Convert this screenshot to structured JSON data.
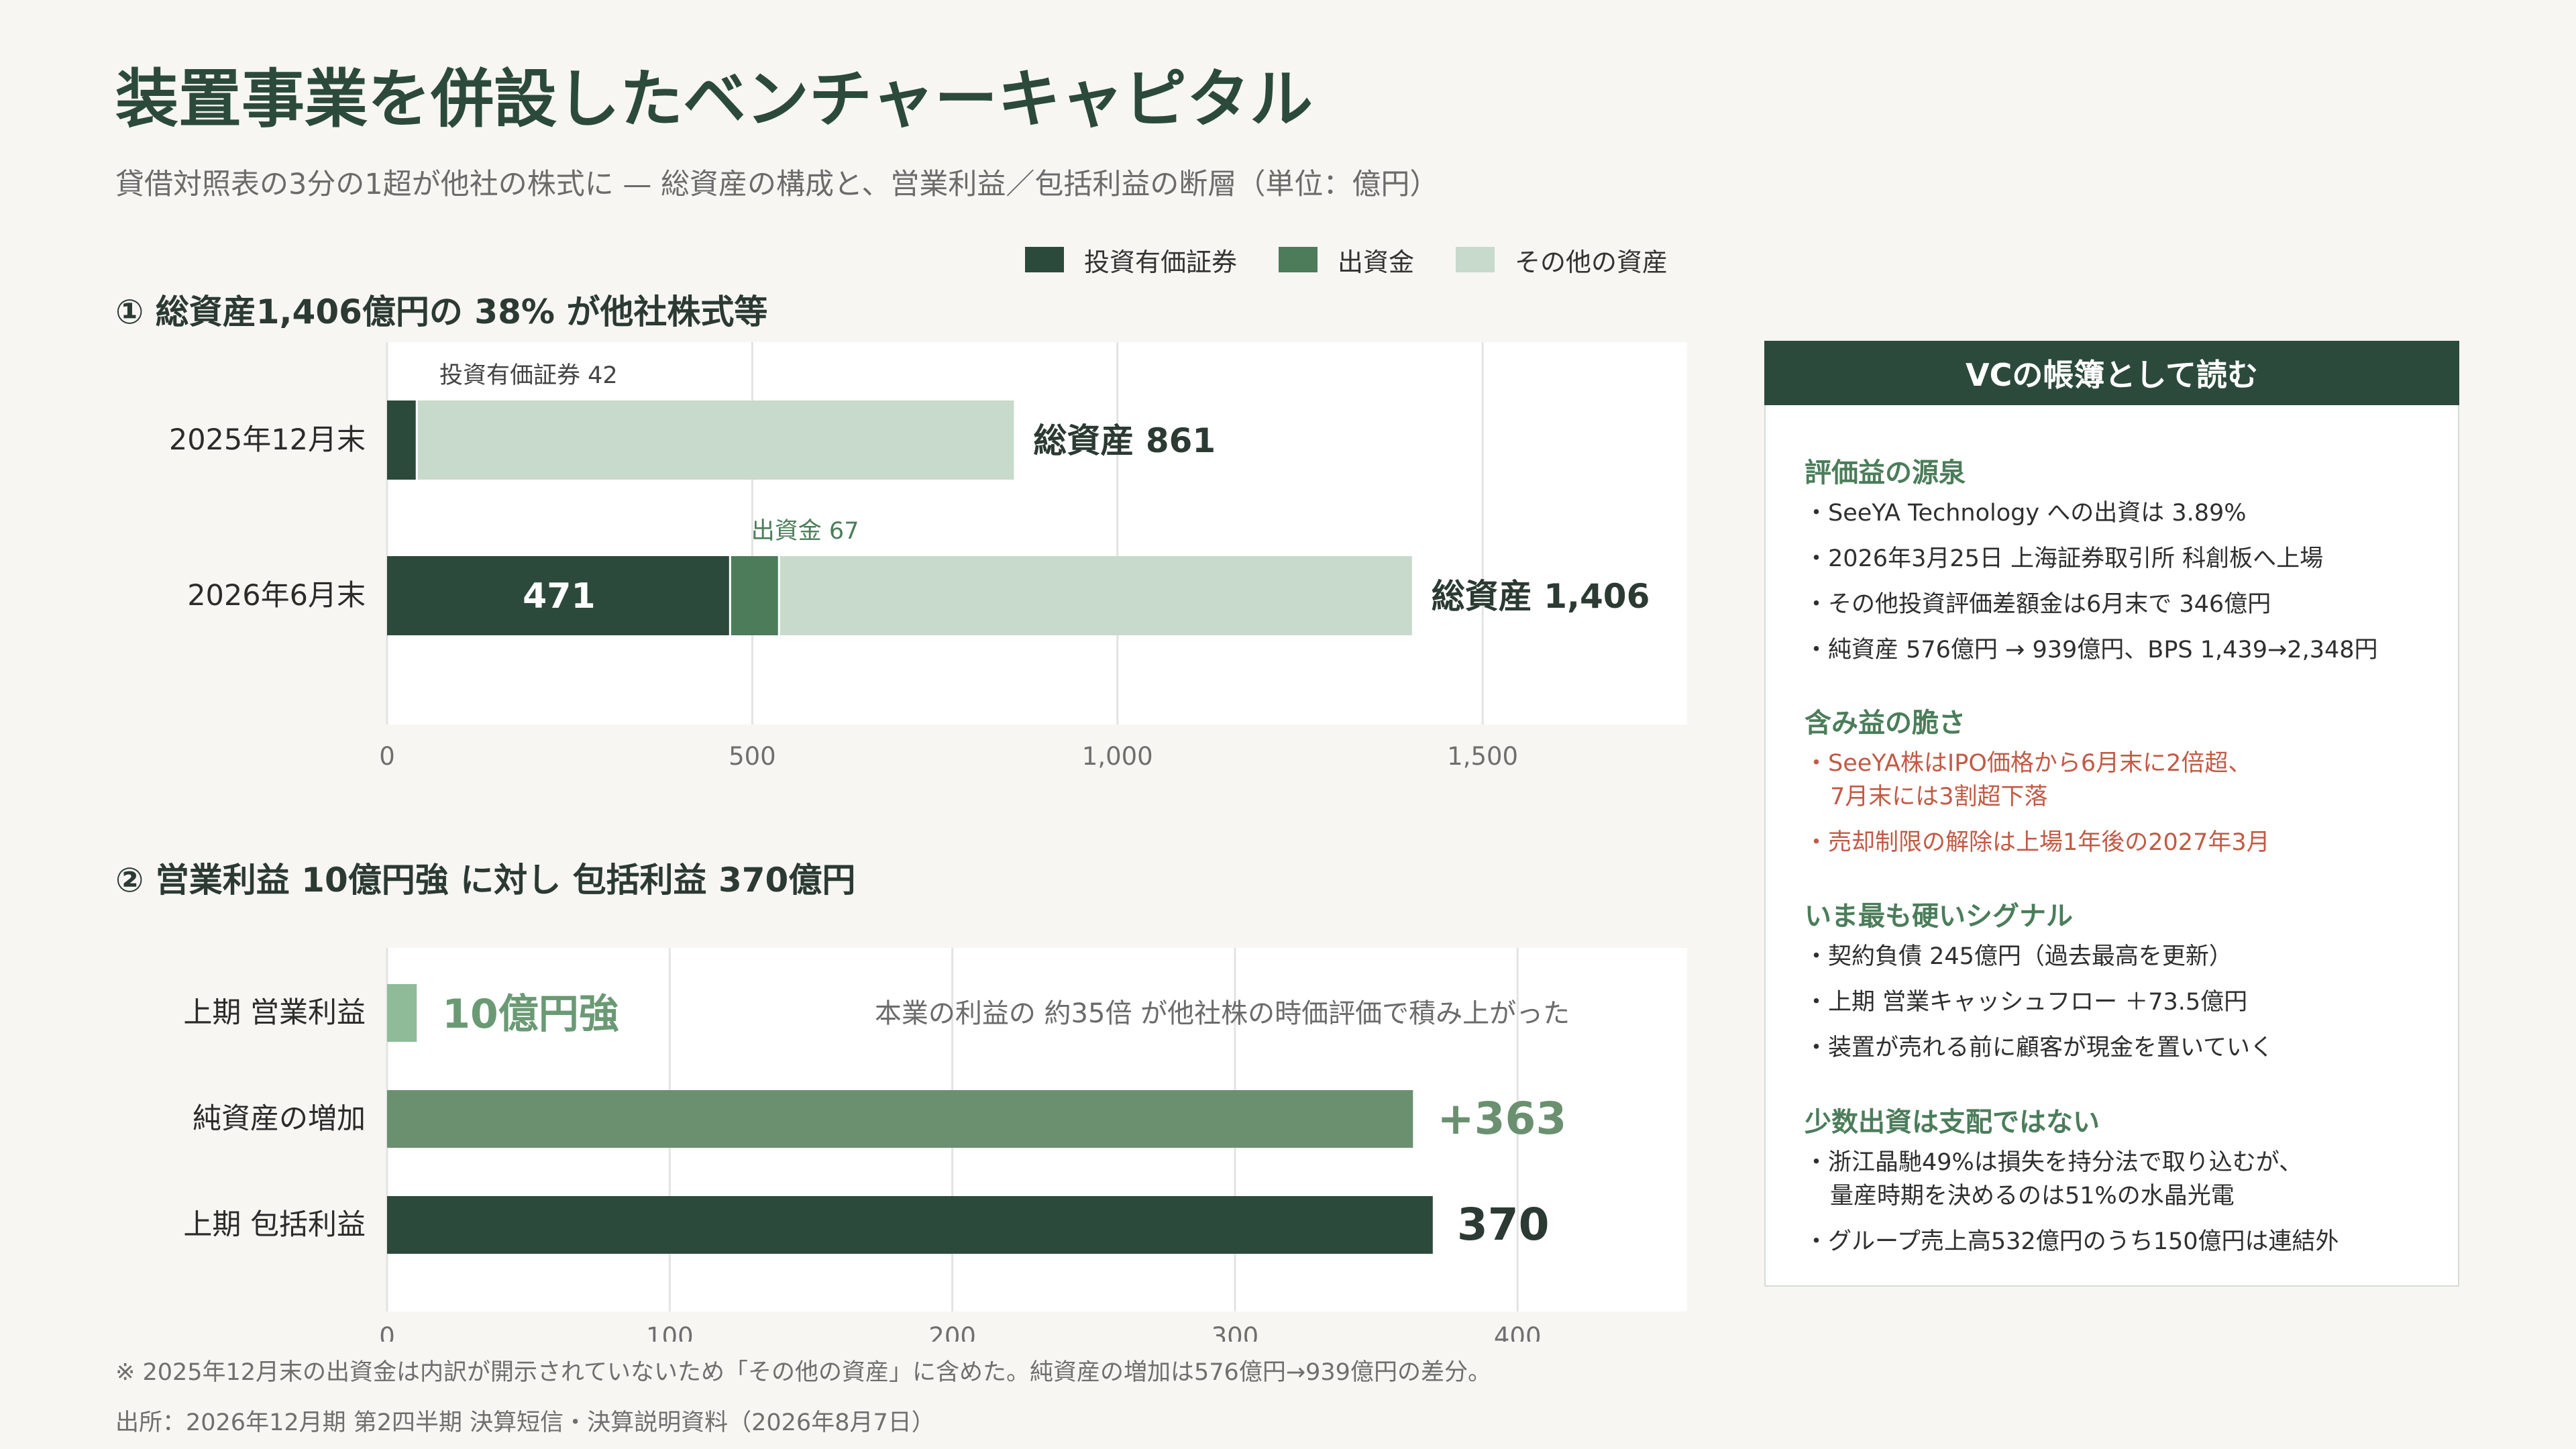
{
  "page": {
    "title": "装置事業を併設したベンチャーキャピタル",
    "subtitle": "貸借対照表の3分の1超が他社の株式に — 総資産の構成と、営業利益／包括利益の断層（単位：億円）"
  },
  "legend": [
    {
      "label": "投資有価証券",
      "color": "#2c4a3b"
    },
    {
      "label": "出資金",
      "color": "#4d7c5b"
    },
    {
      "label": "その他の資産",
      "color": "#c8dacb"
    }
  ],
  "chart_data": [
    {
      "type": "bar",
      "orientation": "horizontal",
      "stacked": true,
      "title": "① 総資産1,406億円の 38% が他社株式等",
      "categories": [
        "2025年12月末",
        "2026年6月末"
      ],
      "series": [
        {
          "name": "投資有価証券",
          "values": [
            42,
            471
          ],
          "color": "#2c4a3b"
        },
        {
          "name": "出資金",
          "values": [
            0,
            67
          ],
          "color": "#4d7c5b"
        },
        {
          "name": "その他の資産",
          "values": [
            819,
            868
          ],
          "color": "#c8dacb"
        }
      ],
      "totals": [
        "総資産 861",
        "総資産 1,406"
      ],
      "annotations": {
        "securities_2025": "投資有価証券 42",
        "investment_2026": "出資金 67",
        "securities_2026": "471"
      },
      "xlim": [
        0,
        1780
      ],
      "xticks": [
        0,
        500,
        1000,
        1500
      ],
      "xtick_labels": [
        "0",
        "500",
        "1,000",
        "1,500"
      ],
      "grid": true
    },
    {
      "type": "bar",
      "orientation": "horizontal",
      "title": "② 営業利益 10億円強 に対し 包括利益 370億円",
      "categories": [
        "上期 営業利益",
        "純資産の増加",
        "上期 包括利益"
      ],
      "values": [
        10.5,
        363,
        370
      ],
      "colors": [
        "#8fbb98",
        "#6a9070",
        "#2c4a3b"
      ],
      "value_labels": [
        "10億円強",
        "+363",
        "370"
      ],
      "annotation": "本業の利益の 約35倍 が他社株の時価評価で積み上がった",
      "xlim": [
        0,
        460
      ],
      "xticks": [
        0,
        100,
        200,
        300,
        400
      ],
      "xtick_labels": [
        "0",
        "100",
        "200",
        "300",
        "400"
      ],
      "grid": true
    }
  ],
  "panel": {
    "title": "VCの帳簿として読む",
    "sections": [
      {
        "heading": "評価益の源泉",
        "items": [
          {
            "text": "・SeeYA Technology への出資は 3.89%",
            "warn": false
          },
          {
            "text": "・2026年3月25日 上海証券取引所 科創板へ上場",
            "warn": false
          },
          {
            "text": "・その他投資評価差額金は6月末で 346億円",
            "warn": false
          },
          {
            "text": "・純資産 576億円 → 939億円、BPS 1,439→2,348円",
            "warn": false
          }
        ]
      },
      {
        "heading": "含み益の脆さ",
        "items": [
          {
            "text": "・SeeYA株はIPO価格から6月末に2倍超、\n7月末には3割超下落",
            "warn": true
          },
          {
            "text": "・売却制限の解除は上場1年後の2027年3月",
            "warn": true
          }
        ]
      },
      {
        "heading": "いま最も硬いシグナル",
        "items": [
          {
            "text": "・契約負債 245億円（過去最高を更新）",
            "warn": false
          },
          {
            "text": "・上期 営業キャッシュフロー ＋73.5億円",
            "warn": false
          },
          {
            "text": "・装置が売れる前に顧客が現金を置いていく",
            "warn": false
          }
        ]
      },
      {
        "heading": "少数出資は支配ではない",
        "items": [
          {
            "text": "・浙江晶馳49%は損失を持分法で取り込むが、\n量産時期を決めるのは51%の水晶光電",
            "warn": false
          },
          {
            "text": "・グループ売上高532億円のうち150億円は連結外",
            "warn": false
          }
        ]
      }
    ]
  },
  "footnote": "※ 2025年12月末の出資金は内訳が開示されていないため「その他の資産」に含めた。純資産の増加は576億円→939億円の差分。",
  "source": "出所：2026年12月期 第2四半期 決算短信・決算説明資料（2026年8月7日）"
}
